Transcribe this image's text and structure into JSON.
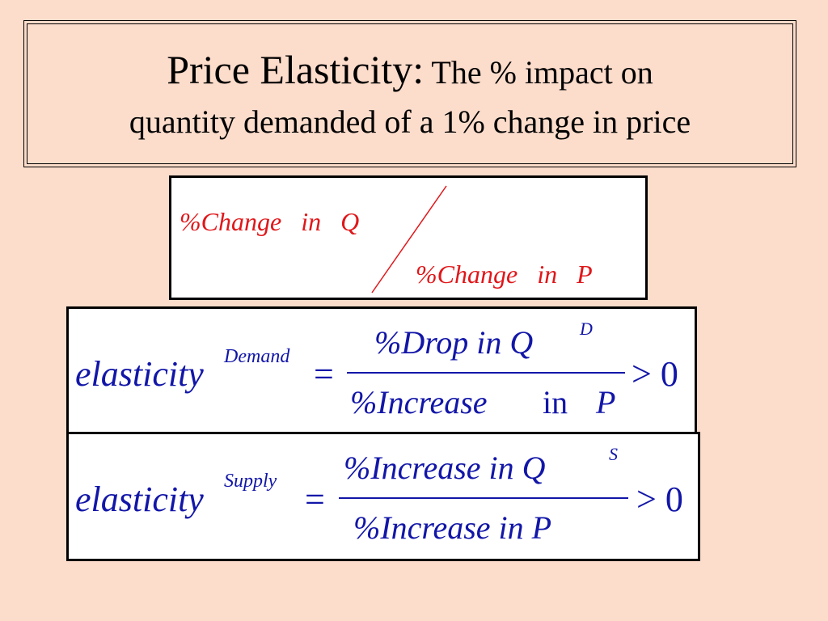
{
  "title": {
    "main": "Price Elasticity:",
    "rest": " The % impact on",
    "line2": "quantity demanded of a 1% change in price"
  },
  "slash_fraction": {
    "numerator": "%Change   in   Q",
    "denominator": "%Change   in   P"
  },
  "demand_formula": {
    "lhs": "elasticity",
    "superscript": "Demand",
    "equals": "=",
    "numerator": "%Drop in Q",
    "numerator_superscript": "D",
    "denominator_prefix": "%Increase",
    "denominator_in": "in",
    "denominator_var": "P",
    "comparison": "> 0"
  },
  "supply_formula": {
    "lhs": "elasticity",
    "superscript": "Supply",
    "equals": "=",
    "numerator": "%Increase in Q",
    "numerator_superscript": "S",
    "denominator": "%Increase in P",
    "comparison": "> 0"
  },
  "colors": {
    "background": "#fcdccb",
    "slash_text": "#e0171a",
    "formula_text": "#1216a8"
  }
}
